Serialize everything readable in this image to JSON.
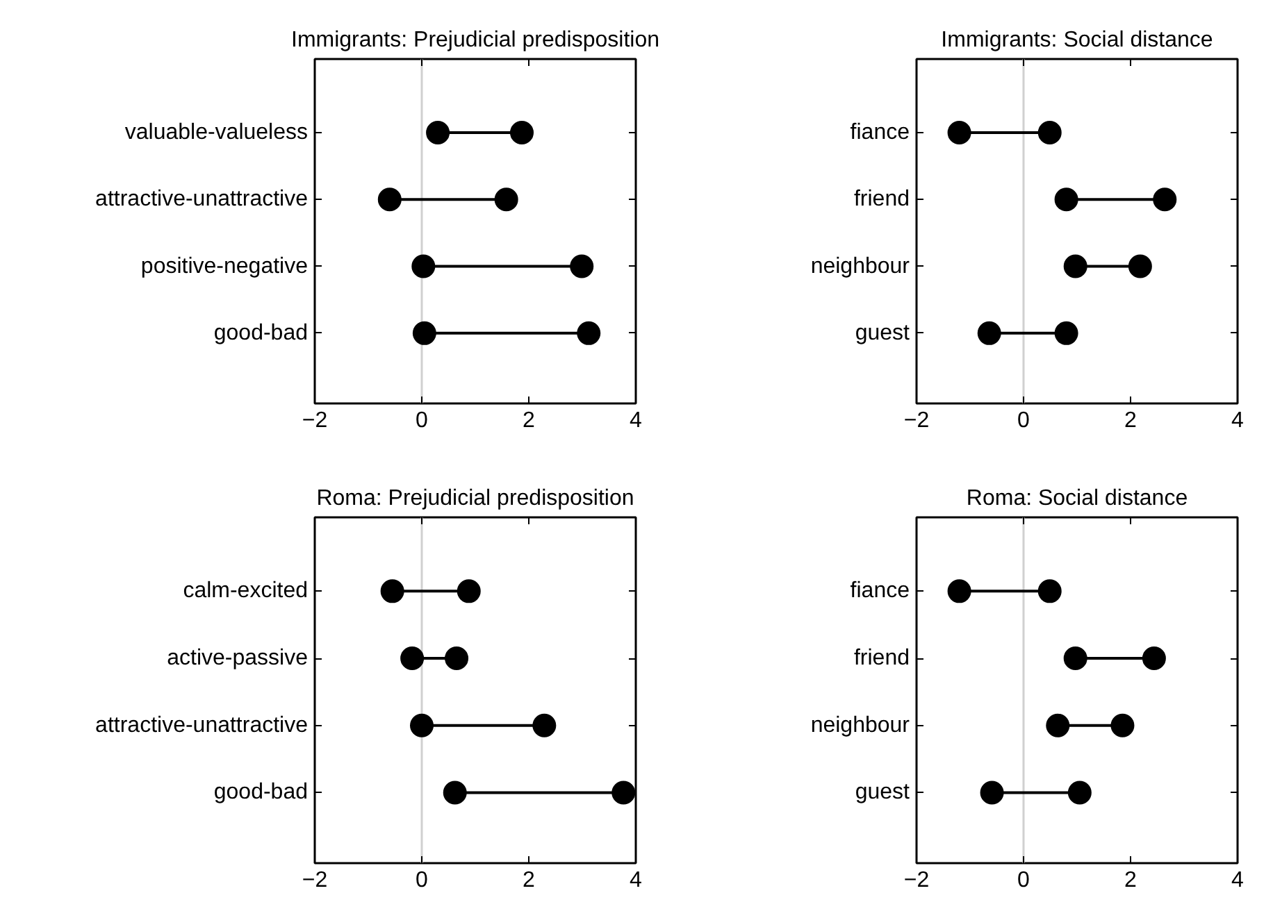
{
  "chart_data": [
    {
      "type": "scatter",
      "orientation": "horizontal",
      "title": "Immigrants: Prejudicial predisposition",
      "categories": [
        "valuable-valueless",
        "attractive-unattractive",
        "positive-negative",
        "good-bad"
      ],
      "marker": "circle",
      "line_style": "solid",
      "xlim": [
        -2,
        4
      ],
      "xticks": [
        -2,
        0,
        2,
        4
      ],
      "grid": false,
      "ref_lines": [
        {
          "axis": "x",
          "value": 0,
          "color": "#d0d0d0"
        }
      ],
      "series": [
        {
          "color": "#000000",
          "values": [
            0.3,
            -0.6,
            0.03,
            0.05
          ]
        },
        {
          "color": "#000000",
          "values": [
            1.87,
            1.58,
            2.99,
            3.12
          ]
        }
      ]
    },
    {
      "type": "scatter",
      "orientation": "horizontal",
      "title": "Immigrants: Social distance",
      "categories": [
        "fiance",
        "friend",
        "neighbour",
        "guest"
      ],
      "marker": "circle",
      "line_style": "solid",
      "xlim": [
        -2,
        4
      ],
      "xticks": [
        -2,
        0,
        2,
        4
      ],
      "grid": false,
      "ref_lines": [
        {
          "axis": "x",
          "value": 0,
          "color": "#d0d0d0"
        }
      ],
      "series": [
        {
          "color": "#000000",
          "values": [
            -1.2,
            0.8,
            0.97,
            -0.64
          ]
        },
        {
          "color": "#000000",
          "values": [
            0.49,
            2.64,
            2.18,
            0.8
          ]
        }
      ]
    },
    {
      "type": "scatter",
      "orientation": "horizontal",
      "title": "Roma: Prejudicial predisposition",
      "categories": [
        "calm-excited",
        "active-passive",
        "attractive-unattractive",
        "good-bad"
      ],
      "marker": "circle",
      "line_style": "solid",
      "xlim": [
        -2,
        4
      ],
      "xticks": [
        -2,
        0,
        2,
        4
      ],
      "grid": false,
      "ref_lines": [
        {
          "axis": "x",
          "value": 0,
          "color": "#d0d0d0"
        }
      ],
      "series": [
        {
          "color": "#000000",
          "values": [
            -0.55,
            -0.18,
            0.0,
            0.62
          ]
        },
        {
          "color": "#000000",
          "values": [
            0.88,
            0.65,
            2.29,
            3.77
          ]
        }
      ]
    },
    {
      "type": "scatter",
      "orientation": "horizontal",
      "title": "Roma: Social distance",
      "categories": [
        "fiance",
        "friend",
        "neighbour",
        "guest"
      ],
      "marker": "circle",
      "line_style": "solid",
      "xlim": [
        -2,
        4
      ],
      "xticks": [
        -2,
        0,
        2,
        4
      ],
      "grid": false,
      "ref_lines": [
        {
          "axis": "x",
          "value": 0,
          "color": "#d0d0d0"
        }
      ],
      "series": [
        {
          "color": "#000000",
          "values": [
            -1.2,
            0.97,
            0.64,
            -0.59
          ]
        },
        {
          "color": "#000000",
          "values": [
            0.49,
            2.44,
            1.85,
            1.05
          ]
        }
      ]
    }
  ]
}
